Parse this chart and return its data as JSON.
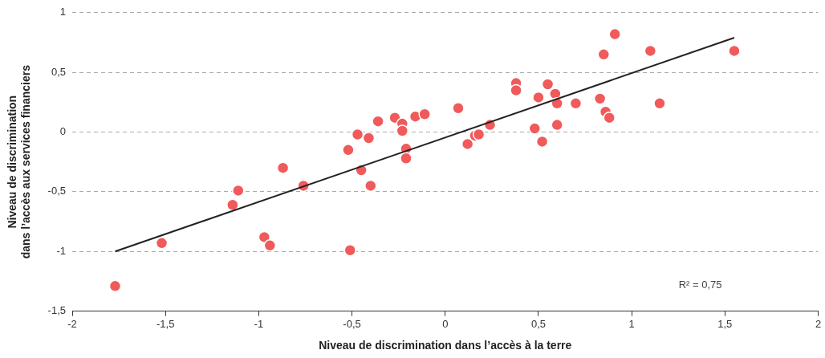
{
  "chart_data": {
    "type": "scatter",
    "xlabel": "Niveau de discrimination dans l’accès à la terre",
    "ylabel": "Niveau de discrimination\ndans l’accès aux services financiers",
    "xlim": [
      -2,
      2
    ],
    "ylim": [
      -1.5,
      1
    ],
    "xticks": [
      -2,
      {
        "value": -1.5,
        "label": "-1,5"
      },
      -1,
      {
        "value": -0.5,
        "label": "-0,5"
      },
      0,
      {
        "value": 0.5,
        "label": "0,5"
      },
      1,
      {
        "value": 1.5,
        "label": "1,5"
      },
      2
    ],
    "yticks": [
      {
        "value": -1.5,
        "label": "-1,5"
      },
      -1,
      {
        "value": -0.5,
        "label": "-0,5"
      },
      0,
      {
        "value": 0.5,
        "label": "0,5"
      },
      1
    ],
    "grid": "y",
    "marker": "circle",
    "annotations": [
      "R² = 0,75"
    ],
    "series": [
      {
        "type": "scatter",
        "color": "#f05a5b",
        "x": [
          -1.77,
          -1.52,
          -1.14,
          -1.11,
          -0.97,
          -0.94,
          -0.87,
          -0.76,
          -0.52,
          -0.51,
          -0.47,
          -0.45,
          -0.41,
          -0.4,
          -0.36,
          -0.27,
          -0.23,
          -0.23,
          -0.21,
          -0.21,
          -0.16,
          -0.11,
          0.07,
          0.12,
          0.16,
          0.18,
          0.24,
          0.38,
          0.38,
          0.5,
          0.55,
          0.59,
          0.6,
          0.7,
          0.48,
          0.52,
          0.6,
          0.83,
          0.86,
          0.88,
          0.85,
          0.91,
          1.1,
          1.15,
          1.55
        ],
        "values": [
          -1.29,
          -0.93,
          -0.61,
          -0.49,
          -0.88,
          -0.95,
          -0.3,
          -0.45,
          -0.15,
          -0.99,
          -0.02,
          -0.32,
          -0.05,
          -0.45,
          0.09,
          0.12,
          0.07,
          0.01,
          -0.14,
          -0.22,
          0.13,
          0.15,
          0.2,
          -0.1,
          -0.03,
          -0.02,
          0.06,
          0.41,
          0.35,
          0.29,
          0.4,
          0.32,
          0.24,
          0.24,
          0.03,
          -0.08,
          0.06,
          0.28,
          0.17,
          0.12,
          0.65,
          0.82,
          0.68,
          0.24,
          0.68
        ]
      },
      {
        "type": "line",
        "color": "#222222",
        "x": [
          -1.77,
          1.55
        ],
        "values": [
          -1.0,
          0.79
        ],
        "marker": "none"
      }
    ]
  }
}
